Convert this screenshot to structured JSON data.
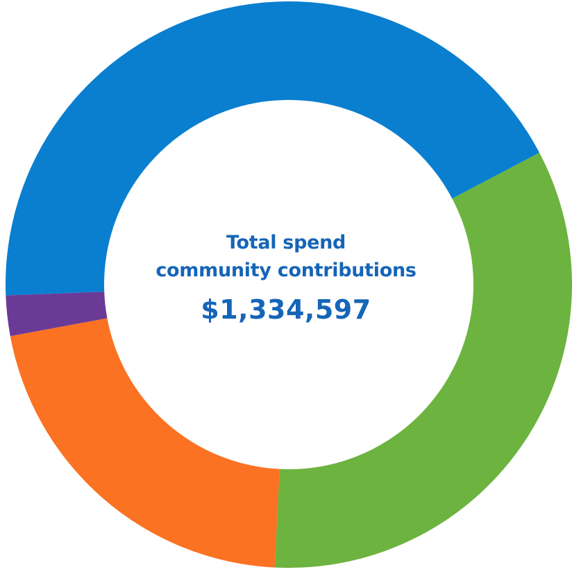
{
  "chart_data": {
    "type": "pie",
    "donut": true,
    "center_text": {
      "line1": "Total spend",
      "line2": "community contributions",
      "total": "$1,334,597"
    },
    "legend": "none",
    "slices": [
      {
        "value": 42.9,
        "color": "#0a7fcf"
      },
      {
        "value": 33.5,
        "color": "#6db33f"
      },
      {
        "value": 21.3,
        "color": "#fa7222"
      },
      {
        "value": 2.3,
        "color": "#6b3a97"
      }
    ]
  }
}
